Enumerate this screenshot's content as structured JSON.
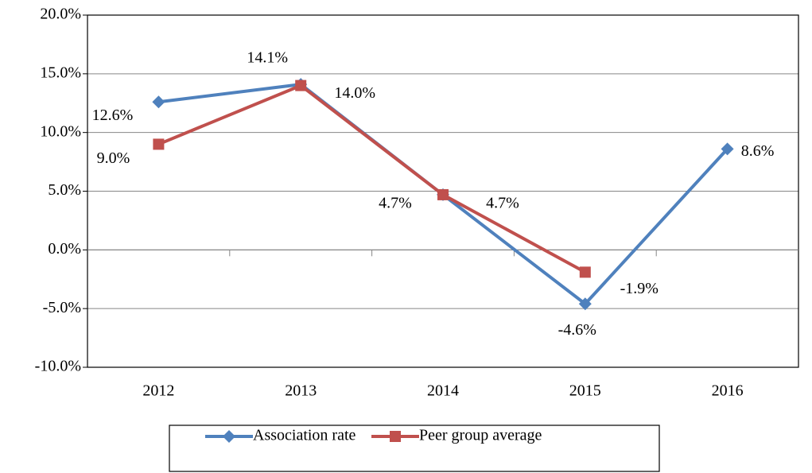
{
  "chart_data": {
    "type": "line",
    "categories": [
      "2012",
      "2013",
      "2014",
      "2015",
      "2016"
    ],
    "series": [
      {
        "name": "Association rate",
        "color": "#4f81bd",
        "marker": "diamond",
        "values": [
          12.6,
          14.1,
          4.7,
          -4.6,
          8.6
        ],
        "value_labels": [
          "12.6%",
          "14.1%",
          "4.7%",
          "-4.6%",
          "8.6%"
        ]
      },
      {
        "name": "Peer group average",
        "color": "#c0504d",
        "marker": "square",
        "values": [
          9.0,
          14.0,
          4.7,
          -1.9,
          null
        ],
        "value_labels": [
          "9.0%",
          "14.0%",
          "4.7%",
          "-1.9%",
          null
        ]
      }
    ],
    "ylim": [
      -10,
      20
    ],
    "yticks": [
      {
        "value": -10,
        "label": "-10.0%"
      },
      {
        "value": -5,
        "label": "-5.0%"
      },
      {
        "value": 0,
        "label": "0.0%"
      },
      {
        "value": 5,
        "label": "5.0%"
      },
      {
        "value": 10,
        "label": "10.0%"
      },
      {
        "value": 15,
        "label": "15.0%"
      },
      {
        "value": 20,
        "label": "20.0%"
      }
    ],
    "grid": true,
    "legend": "bottom"
  }
}
